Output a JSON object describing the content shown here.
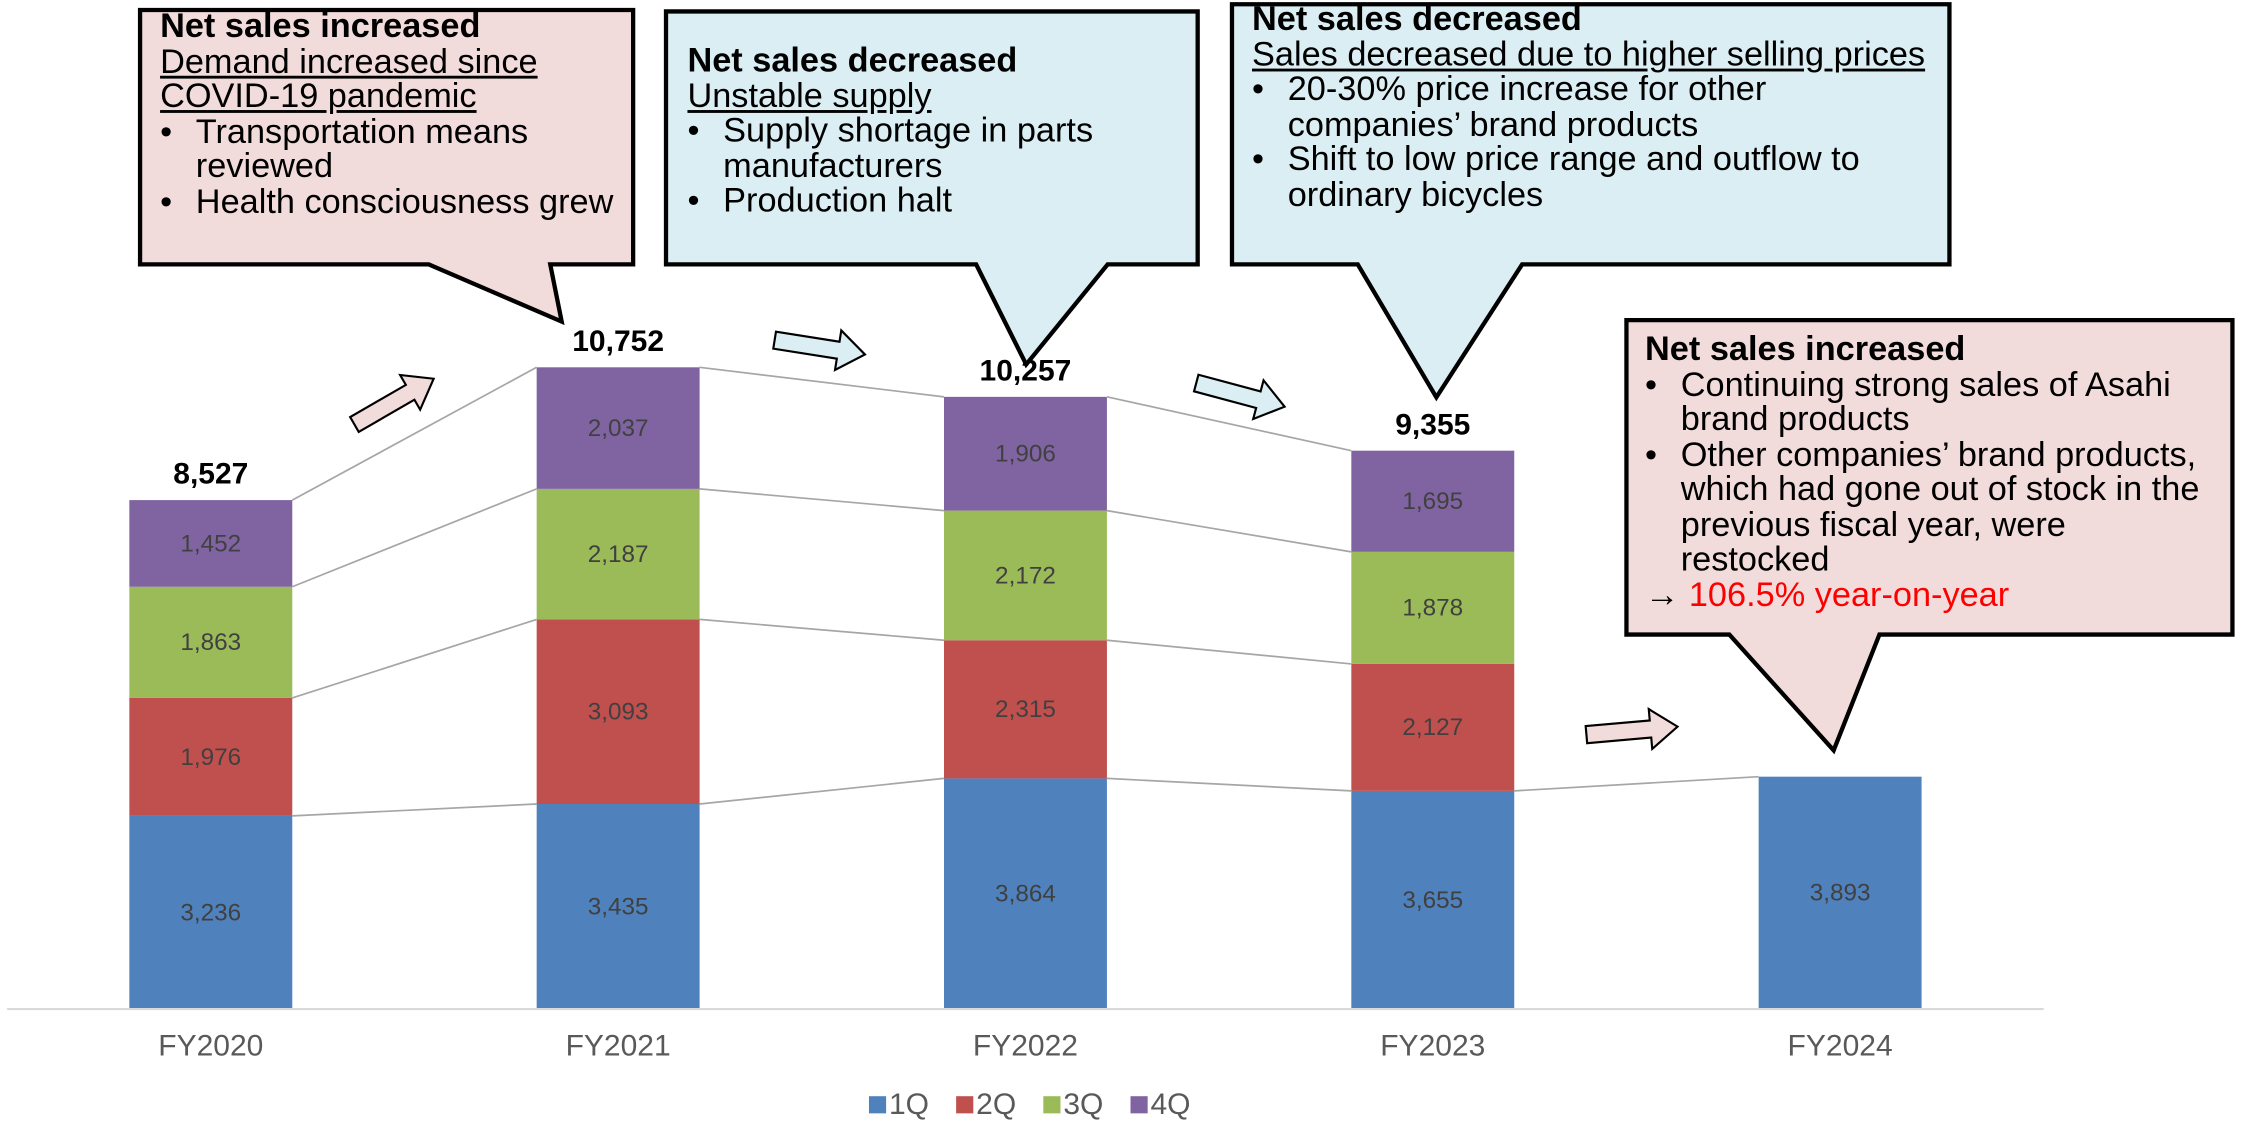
{
  "chart_data": {
    "type": "stacked_bar",
    "categories": [
      "FY2020",
      "FY2021",
      "FY2022",
      "FY2023",
      "FY2024"
    ],
    "series": [
      {
        "name": "1Q",
        "color": "#4f81bd",
        "values": [
          3236,
          3435,
          3864,
          3655,
          3893
        ],
        "value_labels": [
          "3,236",
          "3,435",
          "3,864",
          "3,655",
          "3,893"
        ]
      },
      {
        "name": "2Q",
        "color": "#c0504d",
        "values": [
          1976,
          3093,
          2315,
          2127,
          null
        ],
        "value_labels": [
          "1,976",
          "3,093",
          "2,315",
          "2,127",
          null
        ]
      },
      {
        "name": "3Q",
        "color": "#9bbb59",
        "values": [
          1863,
          2187,
          2172,
          1878,
          null
        ],
        "value_labels": [
          "1,863",
          "2,187",
          "2,172",
          "1,878",
          null
        ]
      },
      {
        "name": "4Q",
        "color": "#8064a2",
        "values": [
          1452,
          2037,
          1906,
          1695,
          null
        ],
        "value_labels": [
          "1,452",
          "2,037",
          "1,906",
          "1,695",
          null
        ]
      }
    ],
    "totals": {
      "values": [
        8527,
        10752,
        10257,
        9355,
        null
      ],
      "value_labels": [
        "8,527",
        "10,752",
        "10,257",
        "9,355",
        null
      ]
    },
    "ylim": [
      0,
      17000
    ],
    "legend": "bottom",
    "annotations": [
      {
        "heading": "Net sales increased",
        "subheading": "Demand increased since COVID-19 pandemic",
        "bullets": [
          "Transportation means reviewed",
          "Health consciousness grew"
        ],
        "color": "#f2dcdb"
      },
      {
        "heading": "Net sales decreased",
        "subheading": "Unstable supply",
        "bullets": [
          "Supply shortage in parts manufacturers",
          "Production halt"
        ],
        "color": "#daeef3"
      },
      {
        "heading": "Net sales decreased",
        "subheading": "Sales decreased due to higher selling prices",
        "bullets": [
          "20-30% price increase for other companies’ brand products",
          "Shift to low price range and outflow to ordinary bicycles"
        ],
        "color": "#daeef3"
      },
      {
        "heading": "Net sales increased",
        "bullets": [
          "Continuing strong sales of Asahi brand products",
          "Other companies’ brand products, which had gone out of stock in the previous fiscal year, were restocked"
        ],
        "note_prefix": "→",
        "note": "106.5% year-on-year",
        "note_color": "#ff0000",
        "color": "#f2dcdb"
      }
    ]
  }
}
